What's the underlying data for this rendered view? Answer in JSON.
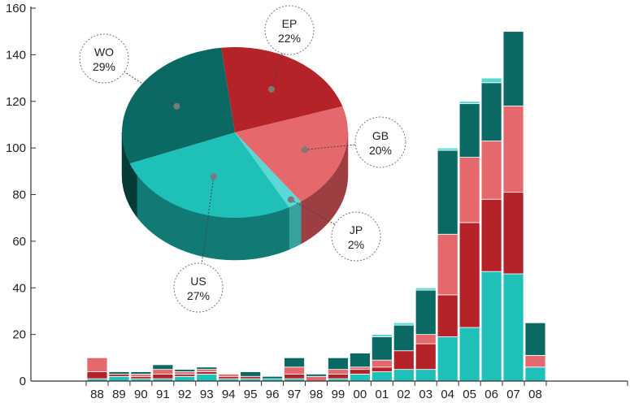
{
  "chart_data": [
    {
      "type": "bar",
      "stacked": true,
      "categories": [
        "88",
        "89",
        "90",
        "91",
        "92",
        "93",
        "94",
        "95",
        "96",
        "97",
        "98",
        "99",
        "00",
        "01",
        "02",
        "03",
        "04",
        "05",
        "06",
        "07",
        "08"
      ],
      "series": [
        {
          "name": "US",
          "color": "#1ec0b7",
          "values": [
            1,
            2,
            1,
            1,
            2,
            3,
            1,
            1,
            1,
            1,
            0,
            1,
            3,
            4,
            5,
            5,
            19,
            23,
            47,
            46,
            6
          ]
        },
        {
          "name": "EP",
          "color": "#b52228",
          "values": [
            3,
            1,
            1,
            2,
            1,
            1,
            1,
            1,
            0,
            2,
            0,
            2,
            2,
            2,
            8,
            11,
            18,
            45,
            31,
            35,
            0
          ]
        },
        {
          "name": "GB",
          "color": "#e4686c",
          "values": [
            6,
            0,
            1,
            2,
            1,
            1,
            1,
            0,
            0,
            3,
            2,
            2,
            1,
            3,
            0,
            4,
            26,
            28,
            25,
            37,
            5
          ]
        },
        {
          "name": "WO",
          "color": "#0b6964",
          "values": [
            0,
            1,
            1,
            2,
            1,
            1,
            0,
            2,
            1,
            4,
            1,
            5,
            6,
            10,
            11,
            19,
            36,
            23,
            25,
            32,
            14
          ]
        },
        {
          "name": "JP",
          "color": "#5ad8d4",
          "values": [
            0,
            0,
            0,
            0,
            0,
            0,
            0,
            0,
            0,
            0,
            0,
            0,
            0,
            1,
            1,
            1,
            1,
            1,
            2,
            0,
            0
          ]
        }
      ],
      "ylim": [
        0,
        160
      ],
      "yticks": [
        0,
        20,
        40,
        60,
        80,
        100,
        120,
        140,
        160
      ],
      "grid": false,
      "legend": "none"
    },
    {
      "type": "pie",
      "style": "3d",
      "slices": [
        {
          "label": "EP",
          "percent": 22,
          "display": "22%",
          "color": "#b52228",
          "side": "#7a1519"
        },
        {
          "label": "GB",
          "percent": 20,
          "display": "20%",
          "color": "#e4686c",
          "side": "#9c3e42"
        },
        {
          "label": "JP",
          "percent": 2,
          "display": "2%",
          "color": "#5ad8d4",
          "side": "#37a19c"
        },
        {
          "label": "US",
          "percent": 27,
          "display": "27%",
          "color": "#1ec0b7",
          "side": "#117a74"
        },
        {
          "label": "WO",
          "percent": 29,
          "display": "29%",
          "color": "#0b6964",
          "side": "#063b38"
        }
      ]
    }
  ]
}
